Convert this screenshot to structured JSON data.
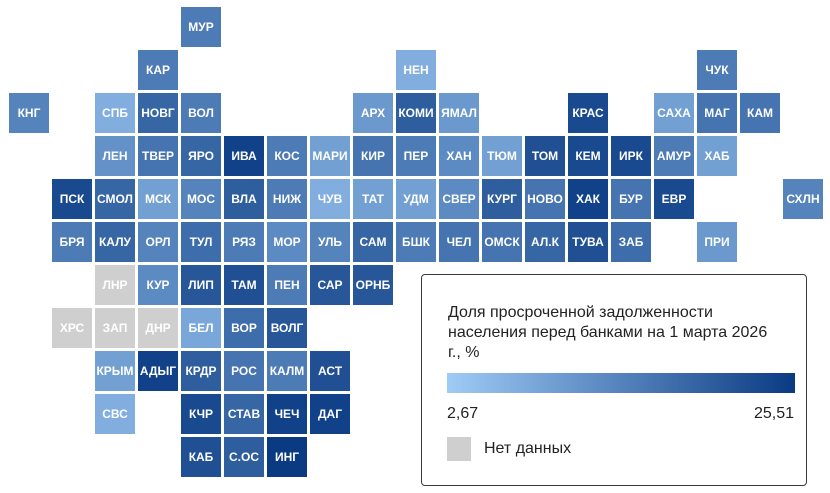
{
  "legend": {
    "title": "Доля просроченной задолженности населения перед банками на 1 марта 2026 г., %",
    "min_label": "2,67",
    "max_label": "25,51",
    "nodata_label": "Нет данных",
    "color_low": "#9fcbf6",
    "color_high": "#0a3a82",
    "color_nodata": "#cfcfcf"
  },
  "regions": [
    {
      "label": "МУР",
      "col": 4,
      "row": 0,
      "level": 0.55
    },
    {
      "label": "КАР",
      "col": 3,
      "row": 1,
      "level": 0.55
    },
    {
      "label": "НЕН",
      "col": 9,
      "row": 1,
      "level": 0.2
    },
    {
      "label": "ЧУК",
      "col": 16,
      "row": 1,
      "level": 0.55
    },
    {
      "label": "КНГ",
      "col": 0,
      "row": 2,
      "level": 0.5
    },
    {
      "label": "СПБ",
      "col": 2,
      "row": 2,
      "level": 0.2
    },
    {
      "label": "НОВГ",
      "col": 3,
      "row": 2,
      "level": 0.7
    },
    {
      "label": "ВОЛ",
      "col": 4,
      "row": 2,
      "level": 0.55
    },
    {
      "label": "АРХ",
      "col": 8,
      "row": 2,
      "level": 0.35
    },
    {
      "label": "КОМИ",
      "col": 9,
      "row": 2,
      "level": 0.75
    },
    {
      "label": "ЯМАЛ",
      "col": 10,
      "row": 2,
      "level": 0.35
    },
    {
      "label": "КРАС",
      "col": 13,
      "row": 2,
      "level": 0.9
    },
    {
      "label": "САХА",
      "col": 15,
      "row": 2,
      "level": 0.3
    },
    {
      "label": "МАГ",
      "col": 16,
      "row": 2,
      "level": 0.6
    },
    {
      "label": "КАМ",
      "col": 17,
      "row": 2,
      "level": 0.6
    },
    {
      "label": "ЛЕН",
      "col": 2,
      "row": 3,
      "level": 0.4
    },
    {
      "label": "ТВЕР",
      "col": 3,
      "row": 3,
      "level": 0.6
    },
    {
      "label": "ЯРО",
      "col": 4,
      "row": 3,
      "level": 0.7
    },
    {
      "label": "ИВА",
      "col": 5,
      "row": 3,
      "level": 0.95
    },
    {
      "label": "КОС",
      "col": 6,
      "row": 3,
      "level": 0.55
    },
    {
      "label": "МАРИ",
      "col": 7,
      "row": 3,
      "level": 0.3
    },
    {
      "label": "КИР",
      "col": 8,
      "row": 3,
      "level": 0.6
    },
    {
      "label": "ПЕР",
      "col": 9,
      "row": 3,
      "level": 0.55
    },
    {
      "label": "ХАН",
      "col": 10,
      "row": 3,
      "level": 0.45
    },
    {
      "label": "ТЮМ",
      "col": 11,
      "row": 3,
      "level": 0.3
    },
    {
      "label": "ТОМ",
      "col": 12,
      "row": 3,
      "level": 0.85
    },
    {
      "label": "КЕМ",
      "col": 13,
      "row": 3,
      "level": 0.9
    },
    {
      "label": "ИРК",
      "col": 14,
      "row": 3,
      "level": 0.9
    },
    {
      "label": "АМУР",
      "col": 15,
      "row": 3,
      "level": 0.55
    },
    {
      "label": "ХАБ",
      "col": 16,
      "row": 3,
      "level": 0.3
    },
    {
      "label": "ПСК",
      "col": 1,
      "row": 4,
      "level": 0.9
    },
    {
      "label": "СМОЛ",
      "col": 2,
      "row": 4,
      "level": 0.7
    },
    {
      "label": "МСК",
      "col": 3,
      "row": 4,
      "level": 0.3
    },
    {
      "label": "МОС",
      "col": 4,
      "row": 4,
      "level": 0.5
    },
    {
      "label": "ВЛА",
      "col": 5,
      "row": 4,
      "level": 0.75
    },
    {
      "label": "НИЖ",
      "col": 6,
      "row": 4,
      "level": 0.55
    },
    {
      "label": "ЧУВ",
      "col": 7,
      "row": 4,
      "level": 0.2
    },
    {
      "label": "ТАТ",
      "col": 8,
      "row": 4,
      "level": 0.3
    },
    {
      "label": "УДМ",
      "col": 9,
      "row": 4,
      "level": 0.3
    },
    {
      "label": "СВЕР",
      "col": 10,
      "row": 4,
      "level": 0.45
    },
    {
      "label": "КУРГ",
      "col": 11,
      "row": 4,
      "level": 0.75
    },
    {
      "label": "НОВО",
      "col": 12,
      "row": 4,
      "level": 0.6
    },
    {
      "label": "ХАК",
      "col": 13,
      "row": 4,
      "level": 0.95
    },
    {
      "label": "БУР",
      "col": 14,
      "row": 4,
      "level": 0.6
    },
    {
      "label": "ЕВР",
      "col": 15,
      "row": 4,
      "level": 0.9
    },
    {
      "label": "СХЛН",
      "col": 18,
      "row": 4,
      "level": 0.5
    },
    {
      "label": "БРЯ",
      "col": 1,
      "row": 5,
      "level": 0.55
    },
    {
      "label": "КАЛУ",
      "col": 2,
      "row": 5,
      "level": 0.7
    },
    {
      "label": "ОРЛ",
      "col": 3,
      "row": 5,
      "level": 0.5
    },
    {
      "label": "ТУЛ",
      "col": 4,
      "row": 5,
      "level": 0.65
    },
    {
      "label": "РЯЗ",
      "col": 5,
      "row": 5,
      "level": 0.55
    },
    {
      "label": "МОР",
      "col": 6,
      "row": 5,
      "level": 0.45
    },
    {
      "label": "УЛЬ",
      "col": 7,
      "row": 5,
      "level": 0.5
    },
    {
      "label": "САМ",
      "col": 8,
      "row": 5,
      "level": 0.7
    },
    {
      "label": "БШК",
      "col": 9,
      "row": 5,
      "level": 0.55
    },
    {
      "label": "ЧЕЛ",
      "col": 10,
      "row": 5,
      "level": 0.6
    },
    {
      "label": "ОМСК",
      "col": 11,
      "row": 5,
      "level": 0.6
    },
    {
      "label": "АЛ.К",
      "col": 12,
      "row": 5,
      "level": 0.7
    },
    {
      "label": "ТУВА",
      "col": 13,
      "row": 5,
      "level": 0.85
    },
    {
      "label": "ЗАБ",
      "col": 14,
      "row": 5,
      "level": 0.65
    },
    {
      "label": "ПРИ",
      "col": 16,
      "row": 5,
      "level": 0.35
    },
    {
      "label": "ЛНР",
      "col": 2,
      "row": 6,
      "level": null
    },
    {
      "label": "КУР",
      "col": 3,
      "row": 6,
      "level": 0.45
    },
    {
      "label": "ЛИП",
      "col": 4,
      "row": 6,
      "level": 0.8
    },
    {
      "label": "ТАМ",
      "col": 5,
      "row": 6,
      "level": 0.85
    },
    {
      "label": "ПЕН",
      "col": 6,
      "row": 6,
      "level": 0.55
    },
    {
      "label": "САР",
      "col": 7,
      "row": 6,
      "level": 0.8
    },
    {
      "label": "ОРНБ",
      "col": 8,
      "row": 6,
      "level": 0.8
    },
    {
      "label": "ХРС",
      "col": 1,
      "row": 7,
      "level": null
    },
    {
      "label": "ЗАП",
      "col": 2,
      "row": 7,
      "level": null
    },
    {
      "label": "ДНР",
      "col": 3,
      "row": 7,
      "level": null
    },
    {
      "label": "БЕЛ",
      "col": 4,
      "row": 7,
      "level": 0.25
    },
    {
      "label": "ВОР",
      "col": 5,
      "row": 7,
      "level": 0.65
    },
    {
      "label": "ВОЛГ",
      "col": 6,
      "row": 7,
      "level": 0.8
    },
    {
      "label": "КРЫМ",
      "col": 2,
      "row": 8,
      "level": 0.3
    },
    {
      "label": "АДЫГ",
      "col": 3,
      "row": 8,
      "level": 0.95
    },
    {
      "label": "КРДР",
      "col": 4,
      "row": 8,
      "level": 0.75
    },
    {
      "label": "РОС",
      "col": 5,
      "row": 8,
      "level": 0.6
    },
    {
      "label": "КАЛМ",
      "col": 6,
      "row": 8,
      "level": 0.55
    },
    {
      "label": "АСТ",
      "col": 7,
      "row": 8,
      "level": 0.85
    },
    {
      "label": "СВС",
      "col": 2,
      "row": 9,
      "level": 0.2
    },
    {
      "label": "КЧР",
      "col": 4,
      "row": 9,
      "level": 0.9
    },
    {
      "label": "СТАВ",
      "col": 5,
      "row": 9,
      "level": 0.7
    },
    {
      "label": "ЧЕЧ",
      "col": 6,
      "row": 9,
      "level": 0.95
    },
    {
      "label": "ДАГ",
      "col": 7,
      "row": 9,
      "level": 0.95
    },
    {
      "label": "КАБ",
      "col": 4,
      "row": 10,
      "level": 0.85
    },
    {
      "label": "С.ОС",
      "col": 5,
      "row": 10,
      "level": 0.75
    },
    {
      "label": "ИНГ",
      "col": 6,
      "row": 10,
      "level": 1.0
    }
  ]
}
